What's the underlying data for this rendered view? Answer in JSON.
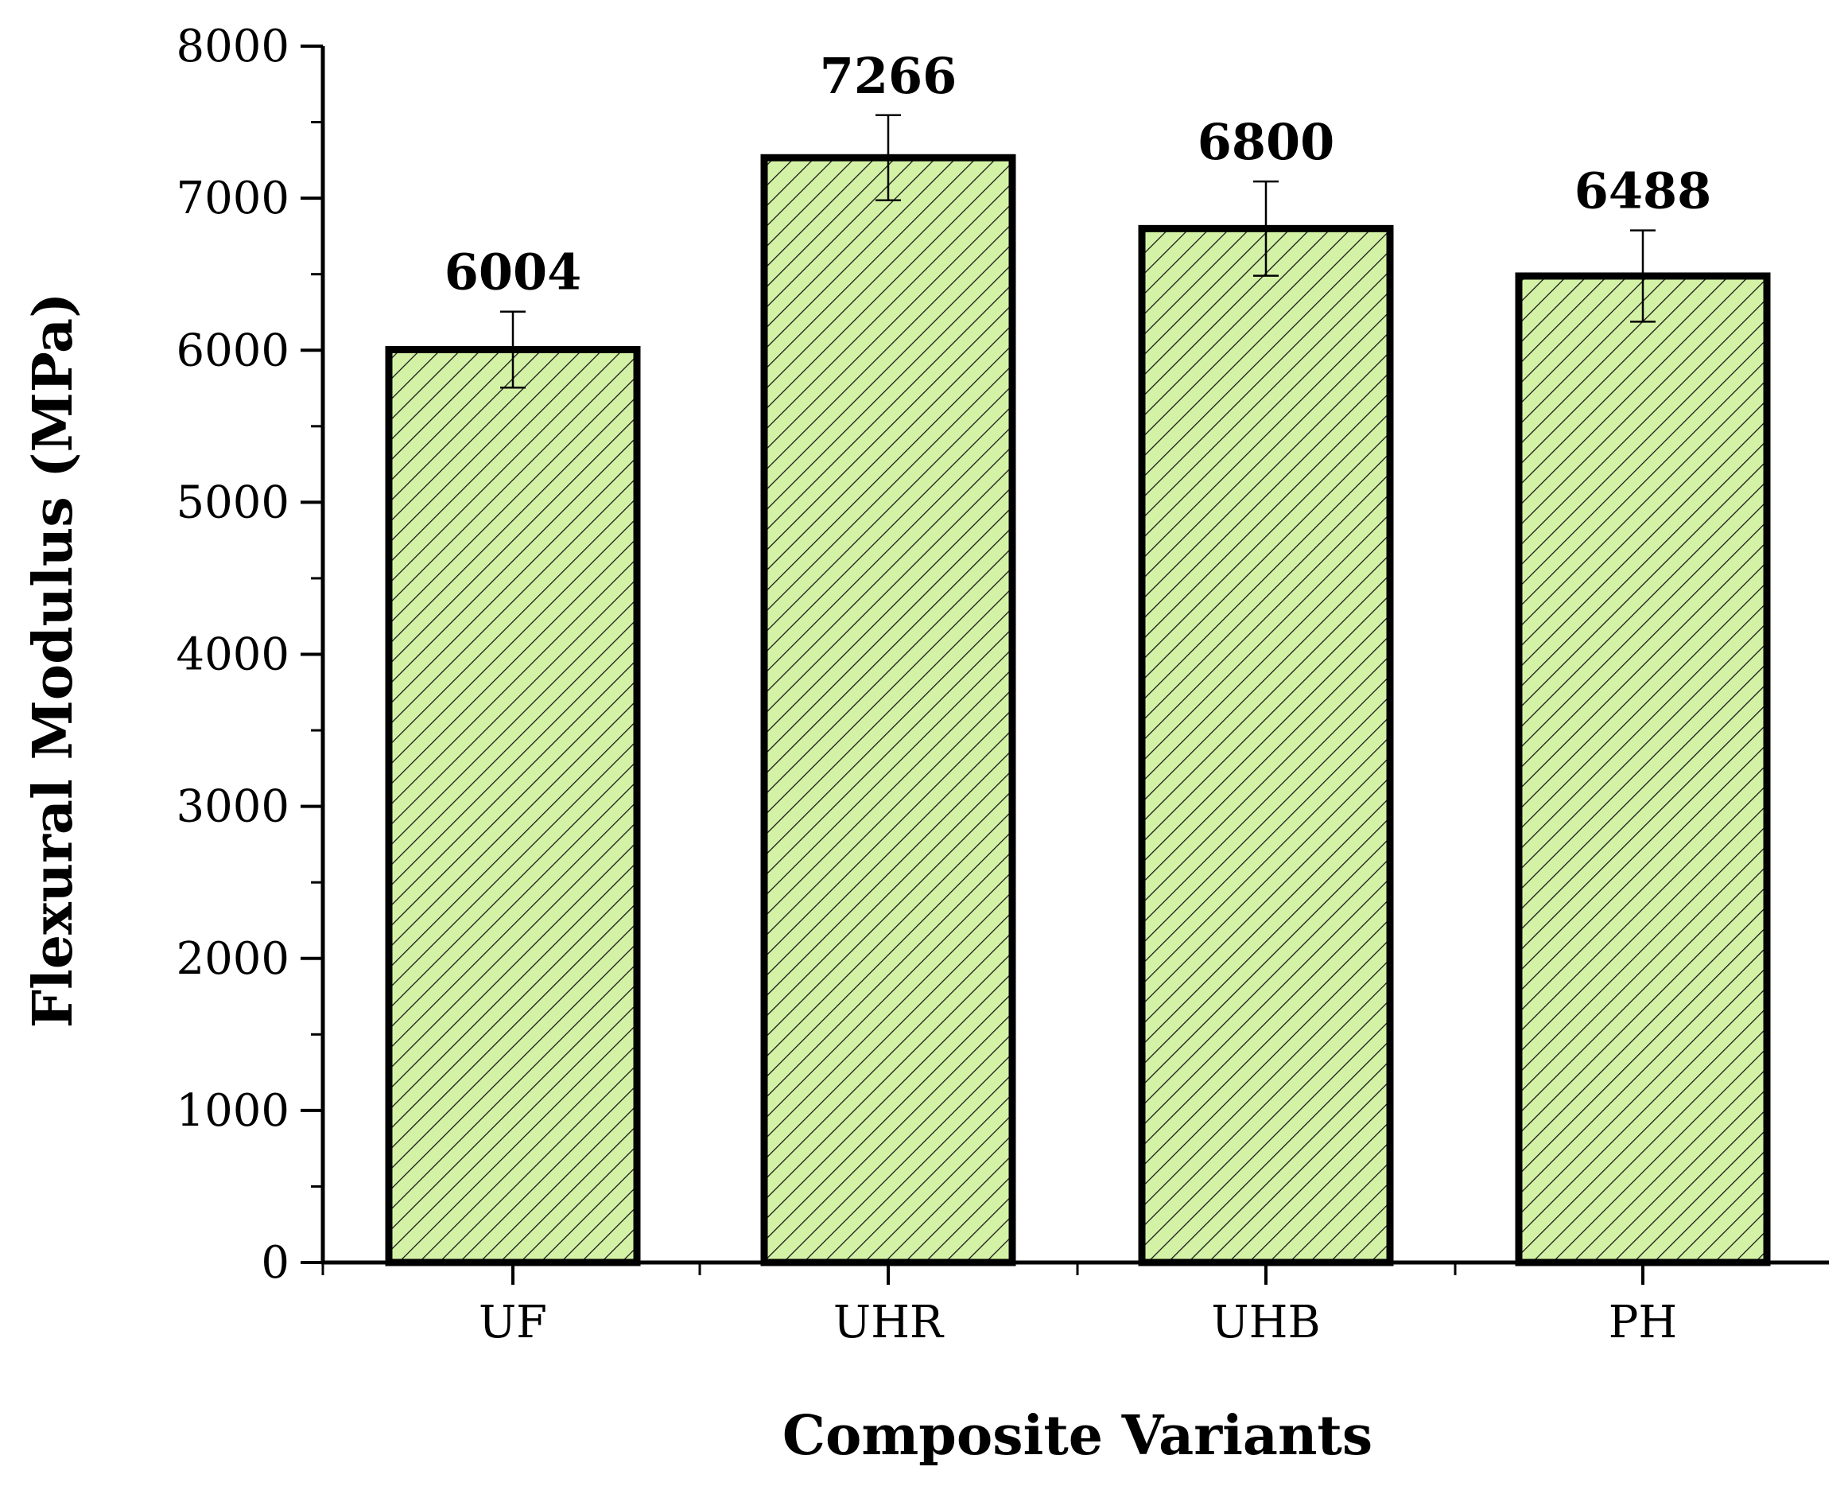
{
  "chart_data": {
    "type": "bar",
    "title": "",
    "xlabel": "Composite Variants",
    "ylabel": "Flexural Modulus (MPa)",
    "categories": [
      "UF",
      "UHR",
      "UHB",
      "PH"
    ],
    "values": [
      6004,
      7266,
      6800,
      6488
    ],
    "error": [
      250,
      280,
      310,
      300
    ],
    "value_labels": [
      "6004",
      "7266",
      "6800",
      "6488"
    ],
    "ylim": [
      0,
      8000
    ],
    "yticks": [
      0,
      1000,
      2000,
      3000,
      4000,
      5000,
      6000,
      7000,
      8000
    ],
    "ytick_labels": [
      "0",
      "1000",
      "2000",
      "3000",
      "4000",
      "5000",
      "6000",
      "7000",
      "8000"
    ],
    "grid": false,
    "legend": "none",
    "bar_fill": "#d4f2a6",
    "hatch": "diagonal",
    "hatch_color": "#1a1a1a",
    "edge_color": "#000000"
  }
}
